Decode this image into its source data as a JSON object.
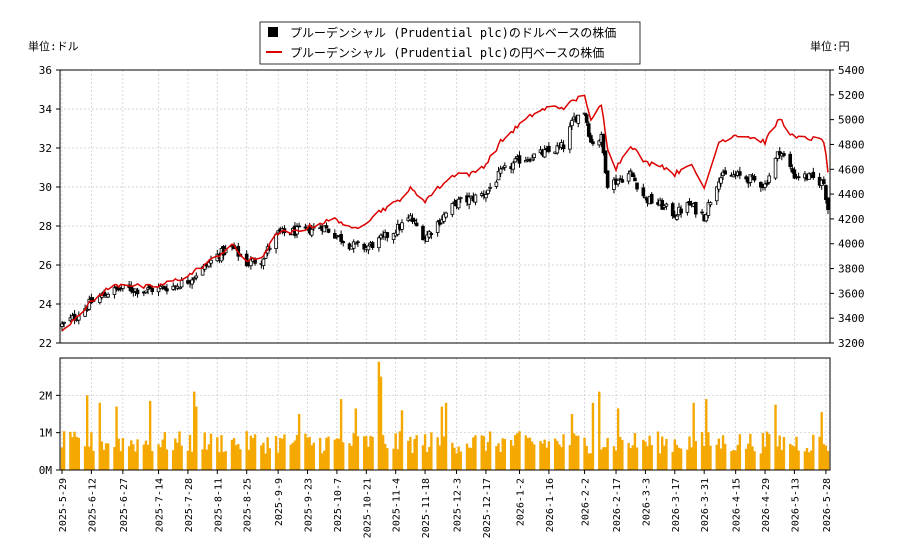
{
  "chart_data": [
    {
      "type": "candlestick+line",
      "left_unit_label": "単位:ドル",
      "right_unit_label": "単位:円",
      "legend": [
        {
          "label": "プルーデンシャル (Prudential plc)のドルベースの株価",
          "color": "#000000",
          "marker": "square"
        },
        {
          "label": "プルーデンシャル (Prudential plc)の円ベースの株価",
          "color": "#dd0000",
          "marker": "line"
        }
      ],
      "legend_placement": "top-center",
      "grid": true,
      "left_axis": {
        "min": 22,
        "max": 36,
        "ticks": [
          "22",
          "24",
          "26",
          "28",
          "30",
          "32",
          "34",
          "36"
        ]
      },
      "right_axis": {
        "min": 3200,
        "max": 5400,
        "ticks": [
          "3200",
          "3400",
          "3600",
          "3800",
          "4000",
          "4200",
          "4400",
          "4600",
          "4800",
          "5000",
          "5200",
          "5400"
        ]
      },
      "x_start": "2025-05-29",
      "x_end": "2026-05-29",
      "x_ticks": [
        "2025-5-29",
        "2025-6-12",
        "2025-6-27",
        "2025-7-14",
        "2025-7-28",
        "2025-8-11",
        "2025-8-25",
        "2025-9-9",
        "2025-9-23",
        "2025-10-7",
        "2025-10-21",
        "2025-11-4",
        "2025-11-18",
        "2025-12-3",
        "2025-12-17",
        "2026-1-2",
        "2026-1-16",
        "2026-2-2",
        "2026-2-17",
        "2026-3-3",
        "2026-3-17",
        "2026-3-31",
        "2026-4-15",
        "2026-4-29",
        "2026-5-13",
        "2026-5-28"
      ],
      "usd_close_anchors": [
        {
          "date": "2025-05-29",
          "value": 22.9
        },
        {
          "date": "2025-06-05",
          "value": 23.4
        },
        {
          "date": "2025-06-12",
          "value": 24.1
        },
        {
          "date": "2025-06-20",
          "value": 24.6
        },
        {
          "date": "2025-06-27",
          "value": 24.8
        },
        {
          "date": "2025-07-07",
          "value": 24.7
        },
        {
          "date": "2025-07-14",
          "value": 24.8
        },
        {
          "date": "2025-07-21",
          "value": 24.9
        },
        {
          "date": "2025-07-28",
          "value": 25.2
        },
        {
          "date": "2025-08-04",
          "value": 25.8
        },
        {
          "date": "2025-08-11",
          "value": 26.5
        },
        {
          "date": "2025-08-18",
          "value": 26.9
        },
        {
          "date": "2025-08-25",
          "value": 26.1
        },
        {
          "date": "2025-09-01",
          "value": 26.3
        },
        {
          "date": "2025-09-09",
          "value": 27.6
        },
        {
          "date": "2025-09-16",
          "value": 27.7
        },
        {
          "date": "2025-09-23",
          "value": 27.8
        },
        {
          "date": "2025-09-30",
          "value": 28.0
        },
        {
          "date": "2025-10-07",
          "value": 27.5
        },
        {
          "date": "2025-10-14",
          "value": 27.0
        },
        {
          "date": "2025-10-21",
          "value": 26.9
        },
        {
          "date": "2025-10-28",
          "value": 27.3
        },
        {
          "date": "2025-11-04",
          "value": 27.8
        },
        {
          "date": "2025-11-11",
          "value": 28.4
        },
        {
          "date": "2025-11-18",
          "value": 27.4
        },
        {
          "date": "2025-11-25",
          "value": 28.3
        },
        {
          "date": "2025-12-03",
          "value": 29.2
        },
        {
          "date": "2025-12-10",
          "value": 29.4
        },
        {
          "date": "2025-12-17",
          "value": 29.7
        },
        {
          "date": "2025-12-24",
          "value": 30.7
        },
        {
          "date": "2026-01-02",
          "value": 31.4
        },
        {
          "date": "2026-01-09",
          "value": 31.6
        },
        {
          "date": "2026-01-16",
          "value": 31.8
        },
        {
          "date": "2026-01-23",
          "value": 32.1
        },
        {
          "date": "2026-01-28",
          "value": 33.5
        },
        {
          "date": "2026-02-02",
          "value": 33.9
        },
        {
          "date": "2026-02-05",
          "value": 32.3
        },
        {
          "date": "2026-02-10",
          "value": 32.5
        },
        {
          "date": "2026-02-13",
          "value": 30.2
        },
        {
          "date": "2026-02-17",
          "value": 30.3
        },
        {
          "date": "2026-02-24",
          "value": 30.7
        },
        {
          "date": "2026-03-03",
          "value": 29.4
        },
        {
          "date": "2026-03-10",
          "value": 29.1
        },
        {
          "date": "2026-03-17",
          "value": 28.6
        },
        {
          "date": "2026-03-24",
          "value": 29.1
        },
        {
          "date": "2026-03-31",
          "value": 28.5
        },
        {
          "date": "2026-04-07",
          "value": 30.5
        },
        {
          "date": "2026-04-15",
          "value": 30.6
        },
        {
          "date": "2026-04-22",
          "value": 30.4
        },
        {
          "date": "2026-04-29",
          "value": 30.1
        },
        {
          "date": "2026-05-06",
          "value": 31.9
        },
        {
          "date": "2026-05-13",
          "value": 30.6
        },
        {
          "date": "2026-05-20",
          "value": 30.5
        },
        {
          "date": "2026-05-27",
          "value": 30.2
        },
        {
          "date": "2026-05-29",
          "value": 28.9
        }
      ],
      "jpy_close_anchors": [
        {
          "date": "2025-05-29",
          "value": 3300
        },
        {
          "date": "2025-06-05",
          "value": 3420
        },
        {
          "date": "2025-06-12",
          "value": 3530
        },
        {
          "date": "2025-06-20",
          "value": 3640
        },
        {
          "date": "2025-06-27",
          "value": 3680
        },
        {
          "date": "2025-07-07",
          "value": 3650
        },
        {
          "date": "2025-07-14",
          "value": 3660
        },
        {
          "date": "2025-07-21",
          "value": 3700
        },
        {
          "date": "2025-07-28",
          "value": 3740
        },
        {
          "date": "2025-08-04",
          "value": 3820
        },
        {
          "date": "2025-08-11",
          "value": 3900
        },
        {
          "date": "2025-08-18",
          "value": 3990
        },
        {
          "date": "2025-08-25",
          "value": 3860
        },
        {
          "date": "2025-09-01",
          "value": 3890
        },
        {
          "date": "2025-09-09",
          "value": 4090
        },
        {
          "date": "2025-09-16",
          "value": 4090
        },
        {
          "date": "2025-09-23",
          "value": 4130
        },
        {
          "date": "2025-09-30",
          "value": 4170
        },
        {
          "date": "2025-10-07",
          "value": 4200
        },
        {
          "date": "2025-10-14",
          "value": 4110
        },
        {
          "date": "2025-10-21",
          "value": 4180
        },
        {
          "date": "2025-10-28",
          "value": 4270
        },
        {
          "date": "2025-11-04",
          "value": 4330
        },
        {
          "date": "2025-11-11",
          "value": 4440
        },
        {
          "date": "2025-11-18",
          "value": 4350
        },
        {
          "date": "2025-11-25",
          "value": 4460
        },
        {
          "date": "2025-12-03",
          "value": 4570
        },
        {
          "date": "2025-12-10",
          "value": 4560
        },
        {
          "date": "2025-12-17",
          "value": 4640
        },
        {
          "date": "2025-12-24",
          "value": 4820
        },
        {
          "date": "2026-01-02",
          "value": 4960
        },
        {
          "date": "2026-01-09",
          "value": 5050
        },
        {
          "date": "2026-01-16",
          "value": 5100
        },
        {
          "date": "2026-01-23",
          "value": 5100
        },
        {
          "date": "2026-01-28",
          "value": 5150
        },
        {
          "date": "2026-02-02",
          "value": 5210
        },
        {
          "date": "2026-02-05",
          "value": 4980
        },
        {
          "date": "2026-02-10",
          "value": 5120
        },
        {
          "date": "2026-02-13",
          "value": 4780
        },
        {
          "date": "2026-02-17",
          "value": 4610
        },
        {
          "date": "2026-02-24",
          "value": 4800
        },
        {
          "date": "2026-03-03",
          "value": 4650
        },
        {
          "date": "2026-03-10",
          "value": 4640
        },
        {
          "date": "2026-03-17",
          "value": 4560
        },
        {
          "date": "2026-03-24",
          "value": 4650
        },
        {
          "date": "2026-03-31",
          "value": 4450
        },
        {
          "date": "2026-04-07",
          "value": 4820
        },
        {
          "date": "2026-04-15",
          "value": 4880
        },
        {
          "date": "2026-04-22",
          "value": 4860
        },
        {
          "date": "2026-04-29",
          "value": 4820
        },
        {
          "date": "2026-05-06",
          "value": 5010
        },
        {
          "date": "2026-05-13",
          "value": 4850
        },
        {
          "date": "2026-05-20",
          "value": 4850
        },
        {
          "date": "2026-05-27",
          "value": 4830
        },
        {
          "date": "2026-05-29",
          "value": 4580
        }
      ],
      "jpy_gaps": [
        [
          "2026-04-01",
          "2026-04-06"
        ]
      ]
    },
    {
      "type": "bar",
      "ylim": [
        0,
        3000000
      ],
      "y_ticks": [
        {
          "value": 0,
          "label": "0M"
        },
        {
          "value": 1000000,
          "label": "1M"
        },
        {
          "value": 2000000,
          "label": "2M"
        }
      ],
      "bar_color": "#f5a800",
      "volume_baseline": 800000,
      "volume_spikes": [
        {
          "date": "2025-06-10",
          "value": 2000000
        },
        {
          "date": "2025-06-16",
          "value": 1800000
        },
        {
          "date": "2025-06-24",
          "value": 1700000
        },
        {
          "date": "2025-07-10",
          "value": 1850000
        },
        {
          "date": "2025-07-31",
          "value": 2100000
        },
        {
          "date": "2025-08-01",
          "value": 1700000
        },
        {
          "date": "2025-09-19",
          "value": 1500000
        },
        {
          "date": "2025-10-09",
          "value": 1900000
        },
        {
          "date": "2025-10-16",
          "value": 1650000
        },
        {
          "date": "2025-10-27",
          "value": 2900000
        },
        {
          "date": "2025-10-28",
          "value": 2500000
        },
        {
          "date": "2025-11-07",
          "value": 1600000
        },
        {
          "date": "2025-11-26",
          "value": 1700000
        },
        {
          "date": "2025-11-28",
          "value": 1800000
        },
        {
          "date": "2026-01-27",
          "value": 1500000
        },
        {
          "date": "2026-02-06",
          "value": 1800000
        },
        {
          "date": "2026-02-09",
          "value": 2100000
        },
        {
          "date": "2026-02-18",
          "value": 1650000
        },
        {
          "date": "2026-03-26",
          "value": 1800000
        },
        {
          "date": "2026-04-01",
          "value": 1900000
        },
        {
          "date": "2026-05-04",
          "value": 1750000
        },
        {
          "date": "2026-05-26",
          "value": 1550000
        }
      ]
    }
  ]
}
